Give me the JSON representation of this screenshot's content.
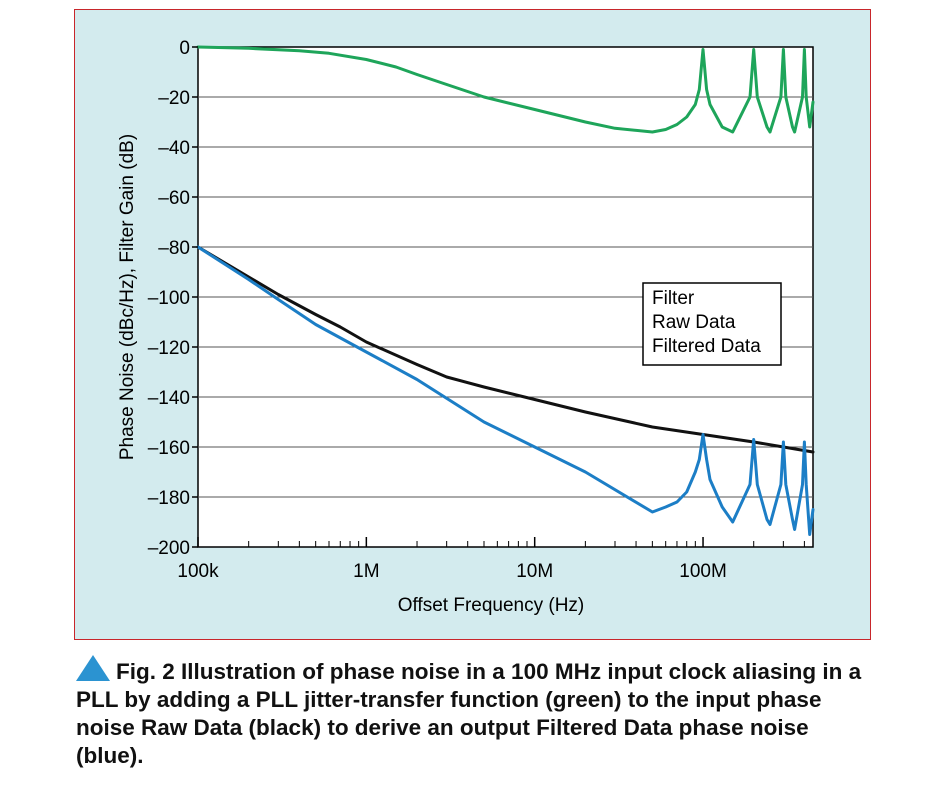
{
  "chart_data": {
    "type": "line",
    "xlabel": "Offset Frequency (Hz)",
    "ylabel": "Phase Noise (dBc/Hz), Filter Gain (dB)",
    "x_scale": "log",
    "xlim": [
      100000,
      450000000
    ],
    "ylim": [
      -200,
      0
    ],
    "x_ticks": [
      {
        "value": 100000,
        "label": "100k"
      },
      {
        "value": 1000000,
        "label": "1M"
      },
      {
        "value": 10000000,
        "label": "10M"
      },
      {
        "value": 100000000,
        "label": "100M"
      }
    ],
    "y_ticks": [
      0,
      -20,
      -40,
      -60,
      -80,
      -100,
      -120,
      -140,
      -160,
      -180,
      -200
    ],
    "y_tick_labels": [
      "0",
      "–20",
      "–40",
      "–60",
      "–80",
      "–100",
      "–120",
      "–140",
      "–160",
      "–180",
      "–200"
    ],
    "grid": true,
    "legend_position": "right-middle",
    "series": [
      {
        "name": "Filter",
        "color": "#1ea55a",
        "x": [
          100000,
          200000,
          400000,
          600000,
          1000000,
          1500000,
          2000000,
          3000000,
          5000000,
          10000000,
          20000000,
          30000000,
          50000000,
          60000000,
          70000000,
          80000000,
          90000000,
          95000000,
          100000000,
          105000000,
          110000000,
          130000000,
          150000000,
          190000000,
          200000000,
          210000000,
          240000000,
          250000000,
          290000000,
          300000000,
          310000000,
          340000000,
          350000000,
          390000000,
          400000000,
          410000000,
          430000000,
          450000000
        ],
        "y": [
          0,
          -0.5,
          -1.5,
          -2.5,
          -5,
          -8,
          -11,
          -15,
          -20,
          -25,
          -30,
          -32.5,
          -34,
          -33,
          -31,
          -28,
          -23,
          -17,
          -1,
          -17,
          -23,
          -32,
          -34,
          -20,
          -1,
          -20,
          -32,
          -34,
          -20,
          -1,
          -20,
          -32,
          -34,
          -20,
          -1,
          -20,
          -32,
          -22
        ]
      },
      {
        "name": "Raw Data",
        "color": "#111111",
        "x": [
          100000,
          200000,
          300000,
          500000,
          700000,
          1000000,
          2000000,
          3000000,
          5000000,
          10000000,
          20000000,
          50000000,
          100000000,
          200000000,
          300000000,
          450000000
        ],
        "y": [
          -80,
          -92,
          -99,
          -107,
          -112,
          -118,
          -127,
          -132,
          -136,
          -141,
          -146,
          -152,
          -155,
          -158,
          -160,
          -162
        ]
      },
      {
        "name": "Filtered Data",
        "color": "#1c7ec6",
        "x": [
          100000,
          200000,
          300000,
          500000,
          1000000,
          2000000,
          5000000,
          10000000,
          20000000,
          50000000,
          60000000,
          70000000,
          80000000,
          90000000,
          95000000,
          100000000,
          105000000,
          110000000,
          130000000,
          150000000,
          190000000,
          200000000,
          210000000,
          240000000,
          250000000,
          290000000,
          300000000,
          310000000,
          340000000,
          350000000,
          390000000,
          400000000,
          410000000,
          430000000,
          450000000
        ],
        "y": [
          -80,
          -93,
          -101,
          -111,
          -122,
          -133,
          -150,
          -160,
          -170,
          -186,
          -184,
          -182,
          -178,
          -170,
          -165,
          -155,
          -165,
          -173,
          -184,
          -190,
          -175,
          -157,
          -175,
          -189,
          -191,
          -175,
          -158,
          -175,
          -189,
          -193,
          -175,
          -158,
          -175,
          -195,
          -185
        ]
      }
    ]
  },
  "legend": {
    "items": [
      {
        "label": "Filter",
        "color": "#1ea55a"
      },
      {
        "label": "Raw Data",
        "color": "#111111"
      },
      {
        "label": "Filtered Data",
        "color": "#1c7ec6"
      }
    ]
  },
  "caption": {
    "text": "Fig. 2  Illustration of phase noise in a 100 MHz input clock aliasing in a PLL by adding a PLL jitter-transfer function (green) to the input phase noise Raw Data (black) to derive an output Filtered Data phase noise (blue)."
  },
  "colors": {
    "frame_border": "#c8262b",
    "frame_fill": "#d3ebee",
    "plot_fill": "#ffffff",
    "caption_triangle": "#2b93d1"
  }
}
